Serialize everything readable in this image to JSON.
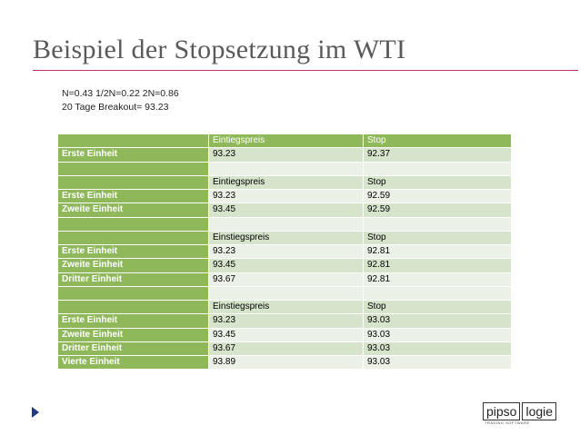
{
  "title": "Beispiel der Stopsetzung im WTI",
  "notes": {
    "line1": "N=0.43   1/2N=0.22 2N=0.86",
    "line2": "20 Tage Breakout= 93.23"
  },
  "table": {
    "rows": [
      {
        "kind": "header-green",
        "label": "",
        "col2": "Eintiegspreis",
        "col3": "Stop"
      },
      {
        "kind": "data",
        "label": "Erste Einheit",
        "col2": "93.23",
        "col3": "92.37"
      },
      {
        "kind": "blank",
        "label": "",
        "col2": "",
        "col3": ""
      },
      {
        "kind": "header",
        "label": "",
        "col2": "Eintiegspreis",
        "col3": "Stop"
      },
      {
        "kind": "data",
        "label": "Erste Einheit",
        "col2": "93.23",
        "col3": "92.59"
      },
      {
        "kind": "data",
        "label": "Zweite Einheit",
        "col2": "93.45",
        "col3": "92.59"
      },
      {
        "kind": "blank",
        "label": "",
        "col2": "",
        "col3": ""
      },
      {
        "kind": "header",
        "label": "",
        "col2": "Einstiegspreis",
        "col3": "Stop"
      },
      {
        "kind": "data",
        "label": "Erste Einheit",
        "col2": "93.23",
        "col3": "92.81"
      },
      {
        "kind": "data",
        "label": "Zweite Einheit",
        "col2": "93.45",
        "col3": "92.81"
      },
      {
        "kind": "data",
        "label": "Dritter Einheit",
        "col2": "93.67",
        "col3": "92.81"
      },
      {
        "kind": "blank",
        "label": "",
        "col2": "",
        "col3": ""
      },
      {
        "kind": "header",
        "label": "",
        "col2": "Einstiegspreis",
        "col3": "Stop"
      },
      {
        "kind": "data",
        "label": "Erste Einheit",
        "col2": "93.23",
        "col3": "93.03"
      },
      {
        "kind": "data",
        "label": "Zweite Einheit",
        "col2": "93.45",
        "col3": "93.03"
      },
      {
        "kind": "data",
        "label": "Dritter Einheit",
        "col2": "93.67",
        "col3": "93.03"
      },
      {
        "kind": "data",
        "label": "Vierte Einheit",
        "col2": "93.89",
        "col3": "93.03"
      }
    ]
  },
  "logo": {
    "part1": "pipso",
    "part2": "logie",
    "tagline": "TRADING SOFTWARE"
  },
  "colors": {
    "accent_rule": "#c0306a",
    "table_label_green": "#8eb85a",
    "table_band_dark": "#d6e4cc",
    "table_band_light": "#ebf1e6",
    "marker": "#1f3a8a"
  },
  "icons": {
    "bullet": "triangle-right-icon"
  }
}
